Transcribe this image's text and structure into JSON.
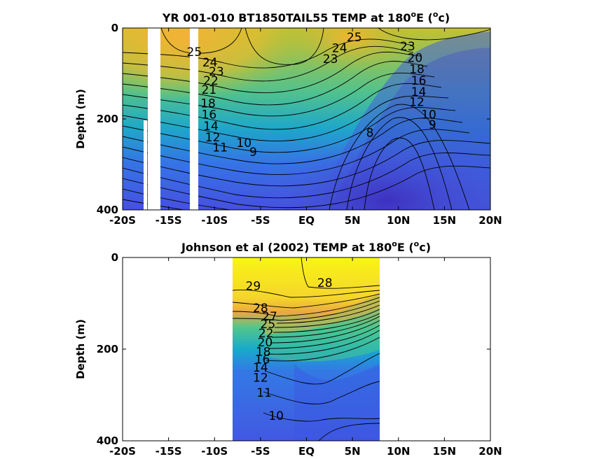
{
  "chart_data": [
    {
      "type": "heatmap",
      "subtype": "filled-contour",
      "title": "YR 001-010 BT1850TAIL55 TEMP at 180",
      "title_superscript": "o",
      "title_suffix_1": "E (",
      "title_suffix_2": "c)",
      "ylabel": "Depth (m)",
      "xlabel": "",
      "x_ticks": [
        "-20S",
        "-15S",
        "-10S",
        "-5S",
        "EQ",
        "5N",
        "10N",
        "15N",
        "20N"
      ],
      "y_ticks": [
        "0",
        "200",
        "400"
      ],
      "xlim": [
        -20,
        20
      ],
      "ylim": [
        400,
        0
      ],
      "y_reversed": true,
      "colormap": "parula",
      "colorscale_range": [
        8,
        29
      ],
      "data_gaps": [
        {
          "lat_from": -17.5,
          "lat_to": -16.8,
          "depth_from": 0,
          "depth_to": 400
        },
        {
          "lat_from": -14.0,
          "lat_to": -13.5,
          "depth_from": 0,
          "depth_to": 400
        },
        {
          "lat_from": -12.4,
          "lat_to": -12.0,
          "depth_from": 0,
          "depth_to": 400
        }
      ],
      "contour_labels": [
        {
          "text": "25",
          "lat": -12.2,
          "depth": 52
        },
        {
          "text": "24",
          "lat": -10.5,
          "depth": 75
        },
        {
          "text": "23",
          "lat": -9.8,
          "depth": 95
        },
        {
          "text": "22",
          "lat": -10.4,
          "depth": 115
        },
        {
          "text": "21",
          "lat": -10.6,
          "depth": 135
        },
        {
          "text": "18",
          "lat": -10.7,
          "depth": 165
        },
        {
          "text": "16",
          "lat": -10.6,
          "depth": 190
        },
        {
          "text": "14",
          "lat": -10.4,
          "depth": 215
        },
        {
          "text": "12",
          "lat": -10.2,
          "depth": 240
        },
        {
          "text": "11",
          "lat": -9.4,
          "depth": 262
        },
        {
          "text": "10",
          "lat": -6.8,
          "depth": 252
        },
        {
          "text": "9",
          "lat": -5.8,
          "depth": 272
        },
        {
          "text": "25",
          "lat": 5.2,
          "depth": 20
        },
        {
          "text": "24",
          "lat": 3.6,
          "depth": 44
        },
        {
          "text": "23",
          "lat": 2.6,
          "depth": 68
        },
        {
          "text": "23",
          "lat": 11.0,
          "depth": 40
        },
        {
          "text": "20",
          "lat": 11.8,
          "depth": 65
        },
        {
          "text": "18",
          "lat": 12.0,
          "depth": 90
        },
        {
          "text": "16",
          "lat": 12.2,
          "depth": 115
        },
        {
          "text": "14",
          "lat": 12.2,
          "depth": 140
        },
        {
          "text": "12",
          "lat": 12.0,
          "depth": 162
        },
        {
          "text": "10",
          "lat": 13.3,
          "depth": 190
        },
        {
          "text": "9",
          "lat": 13.7,
          "depth": 212
        },
        {
          "text": "8",
          "lat": 6.9,
          "depth": 230
        }
      ],
      "contour_interval": 1
    },
    {
      "type": "heatmap",
      "subtype": "filled-contour",
      "title": "Johnson et al (2002) TEMP at 180",
      "title_superscript": "o",
      "title_suffix_1": "E (",
      "title_suffix_2": "c)",
      "ylabel": "Depth (m)",
      "xlabel": "",
      "x_ticks": [
        "-20S",
        "-15S",
        "-10S",
        "-5S",
        "EQ",
        "5N",
        "10N",
        "15N",
        "20N"
      ],
      "y_ticks": [
        "0",
        "200",
        "400"
      ],
      "xlim": [
        -20,
        20
      ],
      "ylim": [
        400,
        0
      ],
      "y_reversed": true,
      "colormap": "parula",
      "colorscale_range": [
        8,
        29
      ],
      "data_extent": {
        "lat_from": -8,
        "lat_to": 8
      },
      "contour_labels": [
        {
          "text": "29",
          "lat": -5.8,
          "depth": 62
        },
        {
          "text": "28",
          "lat": -5.0,
          "depth": 110
        },
        {
          "text": "28",
          "lat": 2.0,
          "depth": 55
        },
        {
          "text": "27",
          "lat": -4.0,
          "depth": 128
        },
        {
          "text": "25",
          "lat": -4.2,
          "depth": 145
        },
        {
          "text": "22",
          "lat": -4.4,
          "depth": 165
        },
        {
          "text": "20",
          "lat": -4.5,
          "depth": 185
        },
        {
          "text": "18",
          "lat": -4.7,
          "depth": 205
        },
        {
          "text": "16",
          "lat": -4.8,
          "depth": 222
        },
        {
          "text": "14",
          "lat": -5.0,
          "depth": 240
        },
        {
          "text": "12",
          "lat": -5.0,
          "depth": 262
        },
        {
          "text": "11",
          "lat": -4.6,
          "depth": 295
        },
        {
          "text": "10",
          "lat": -3.3,
          "depth": 345
        }
      ],
      "contour_interval": 1
    }
  ]
}
